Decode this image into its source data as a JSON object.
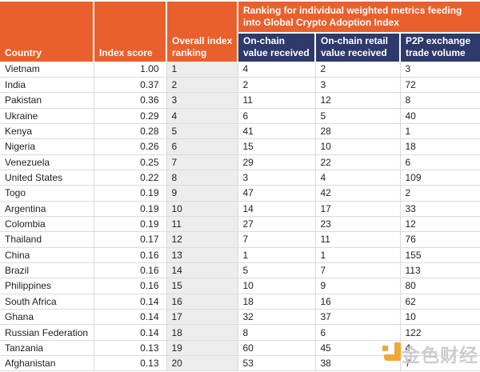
{
  "table": {
    "headers": {
      "country": "Country",
      "index_score": "Index score",
      "overall_ranking": "Overall index ranking",
      "metrics_group": "Ranking for individual weighted metrics feeding into Global Crypto Adoption Index",
      "on_chain_value": "On-chain value received",
      "on_chain_retail": "On-chain retail value received",
      "p2p_volume": "P2P exchange trade volume"
    },
    "rows": [
      {
        "country": "Vietnam",
        "score": "1.00",
        "rank": "1",
        "on_chain": "4",
        "retail": "2",
        "p2p": "3"
      },
      {
        "country": "India",
        "score": "0.37",
        "rank": "2",
        "on_chain": "2",
        "retail": "3",
        "p2p": "72"
      },
      {
        "country": "Pakistan",
        "score": "0.36",
        "rank": "3",
        "on_chain": "11",
        "retail": "12",
        "p2p": "8"
      },
      {
        "country": "Ukraine",
        "score": "0.29",
        "rank": "4",
        "on_chain": "6",
        "retail": "5",
        "p2p": "40"
      },
      {
        "country": "Kenya",
        "score": "0.28",
        "rank": "5",
        "on_chain": "41",
        "retail": "28",
        "p2p": "1"
      },
      {
        "country": "Nigeria",
        "score": "0.26",
        "rank": "6",
        "on_chain": "15",
        "retail": "10",
        "p2p": "18"
      },
      {
        "country": "Venezuela",
        "score": "0.25",
        "rank": "7",
        "on_chain": "29",
        "retail": "22",
        "p2p": "6"
      },
      {
        "country": "United States",
        "score": "0.22",
        "rank": "8",
        "on_chain": "3",
        "retail": "4",
        "p2p": "109"
      },
      {
        "country": "Togo",
        "score": "0.19",
        "rank": "9",
        "on_chain": "47",
        "retail": "42",
        "p2p": "2"
      },
      {
        "country": "Argentina",
        "score": "0.19",
        "rank": "10",
        "on_chain": "14",
        "retail": "17",
        "p2p": "33"
      },
      {
        "country": "Colombia",
        "score": "0.19",
        "rank": "11",
        "on_chain": "27",
        "retail": "23",
        "p2p": "12"
      },
      {
        "country": "Thailand",
        "score": "0.17",
        "rank": "12",
        "on_chain": "7",
        "retail": "11",
        "p2p": "76"
      },
      {
        "country": "China",
        "score": "0.16",
        "rank": "13",
        "on_chain": "1",
        "retail": "1",
        "p2p": "155"
      },
      {
        "country": "Brazil",
        "score": "0.16",
        "rank": "14",
        "on_chain": "5",
        "retail": "7",
        "p2p": "113"
      },
      {
        "country": "Philippines",
        "score": "0.16",
        "rank": "15",
        "on_chain": "10",
        "retail": "9",
        "p2p": "80"
      },
      {
        "country": "South Africa",
        "score": "0.14",
        "rank": "16",
        "on_chain": "18",
        "retail": "16",
        "p2p": "62"
      },
      {
        "country": "Ghana",
        "score": "0.14",
        "rank": "17",
        "on_chain": "32",
        "retail": "37",
        "p2p": "10"
      },
      {
        "country": "Russian Federation",
        "score": "0.14",
        "rank": "18",
        "on_chain": "8",
        "retail": "6",
        "p2p": "122"
      },
      {
        "country": "Tanzania",
        "score": "0.13",
        "rank": "19",
        "on_chain": "60",
        "retail": "45",
        "p2p": "4"
      },
      {
        "country": "Afghanistan",
        "score": "0.13",
        "rank": "20",
        "on_chain": "53",
        "retail": "38",
        "p2p": "7"
      }
    ]
  },
  "watermark": {
    "text": "金色财经",
    "logo": "jinse-pixel-j-logo"
  },
  "colors": {
    "header_orange": "#E9602C",
    "subheader_navy": "#2D3A6B",
    "rank_column_gray": "#EDEDED",
    "grid_border": "#DCDCDC",
    "watermark_amber": "#F0A330"
  }
}
